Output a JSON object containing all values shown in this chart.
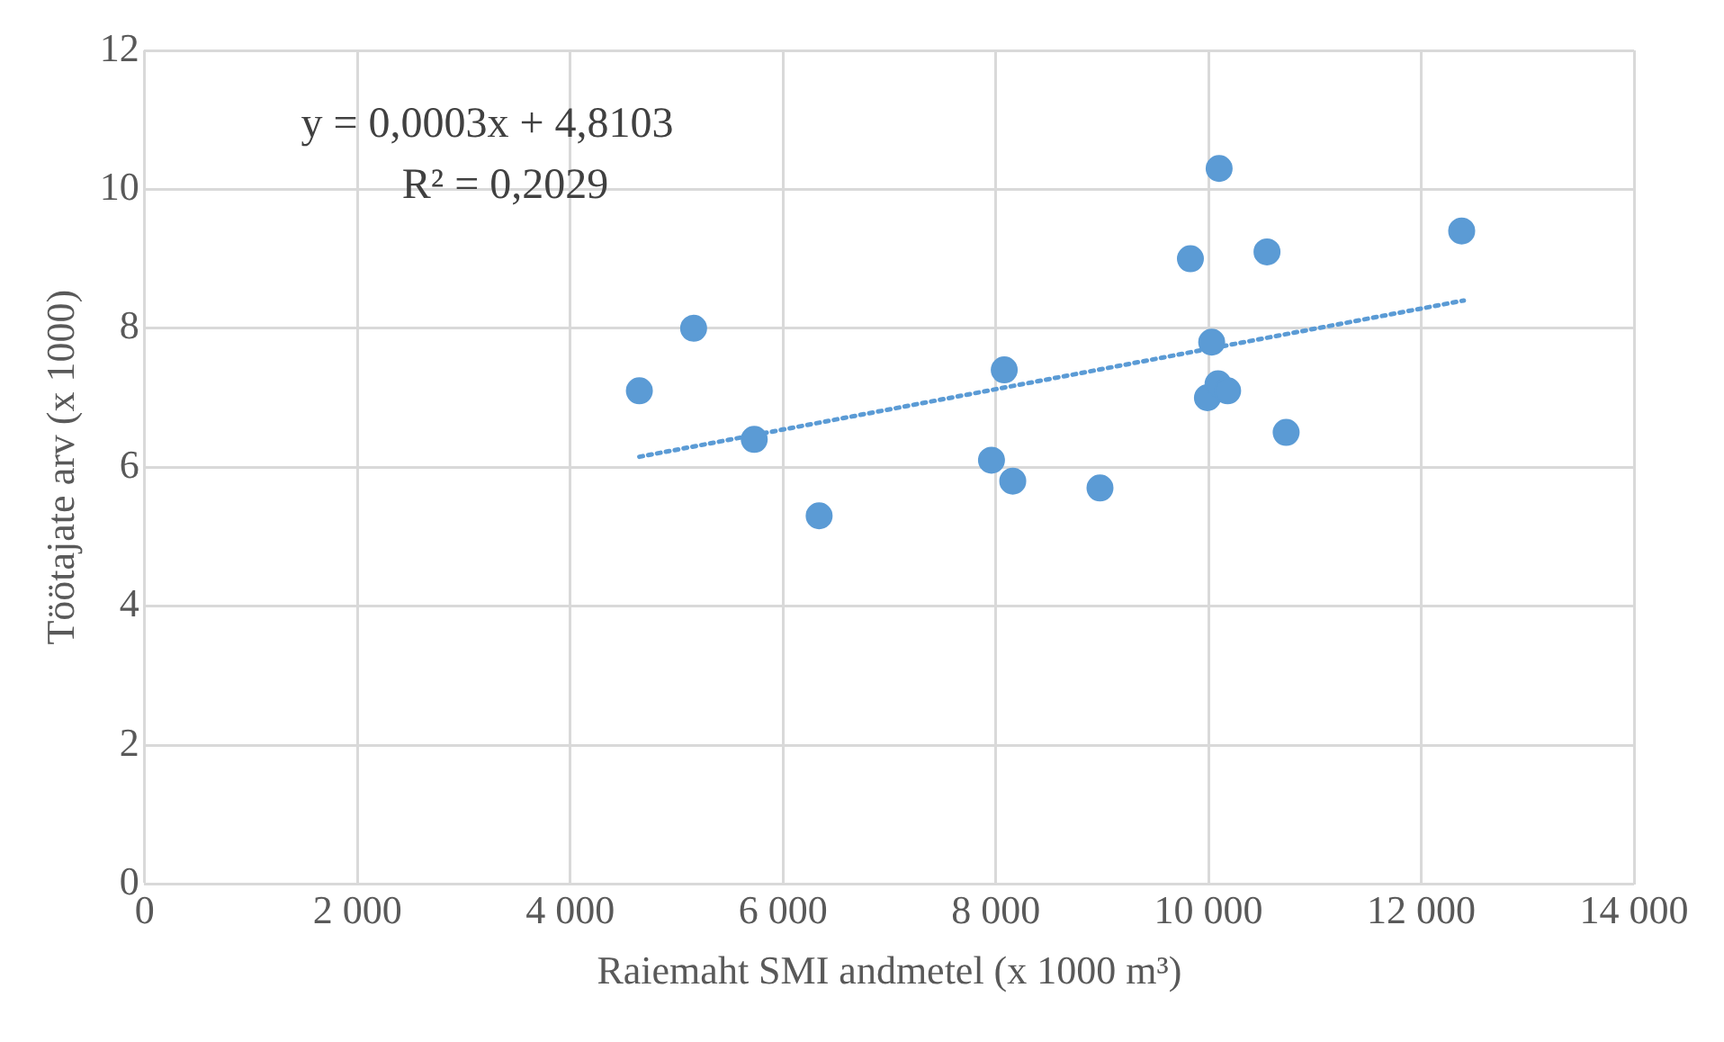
{
  "chart_data": {
    "type": "scatter",
    "xlabel": "Raiemaht SMI andmetel (x 1000 m³)",
    "ylabel": "Töötajate arv (x 1000)",
    "annotations": [
      "y = 0,0003x + 4,8103",
      "R² = 0,2029"
    ],
    "series": [
      {
        "type": "scatter",
        "color": "#5b9bd5",
        "marker": "circle",
        "x": [
          4650,
          5160,
          5730,
          6340,
          7960,
          8080,
          8160,
          8980,
          9830,
          10030,
          9990,
          10090,
          10180,
          10100,
          10550,
          10730,
          12380
        ],
        "values": [
          7.1,
          8.0,
          6.4,
          5.3,
          6.1,
          7.4,
          5.8,
          5.7,
          9.0,
          7.8,
          7.0,
          7.2,
          7.1,
          10.3,
          9.1,
          6.5,
          9.4
        ]
      },
      {
        "type": "line",
        "color": "#5b9bd5",
        "line_style": "dotted",
        "marker": "none",
        "x": [
          4650,
          12400
        ],
        "values": [
          6.15,
          8.4
        ]
      }
    ],
    "xlim": [
      0,
      14000
    ],
    "xticks": [
      0,
      {
        "value": 2000,
        "label": "2 000"
      },
      {
        "value": 4000,
        "label": "4 000"
      },
      {
        "value": 6000,
        "label": "6 000"
      },
      {
        "value": 8000,
        "label": "8 000"
      },
      {
        "value": 10000,
        "label": "10 000"
      },
      {
        "value": 12000,
        "label": "12 000"
      },
      {
        "value": 14000,
        "label": "14 000"
      }
    ],
    "ylim": [
      0,
      12
    ],
    "yticks": [
      0,
      2,
      4,
      6,
      8,
      10,
      12
    ],
    "grid": true,
    "legend": false
  }
}
